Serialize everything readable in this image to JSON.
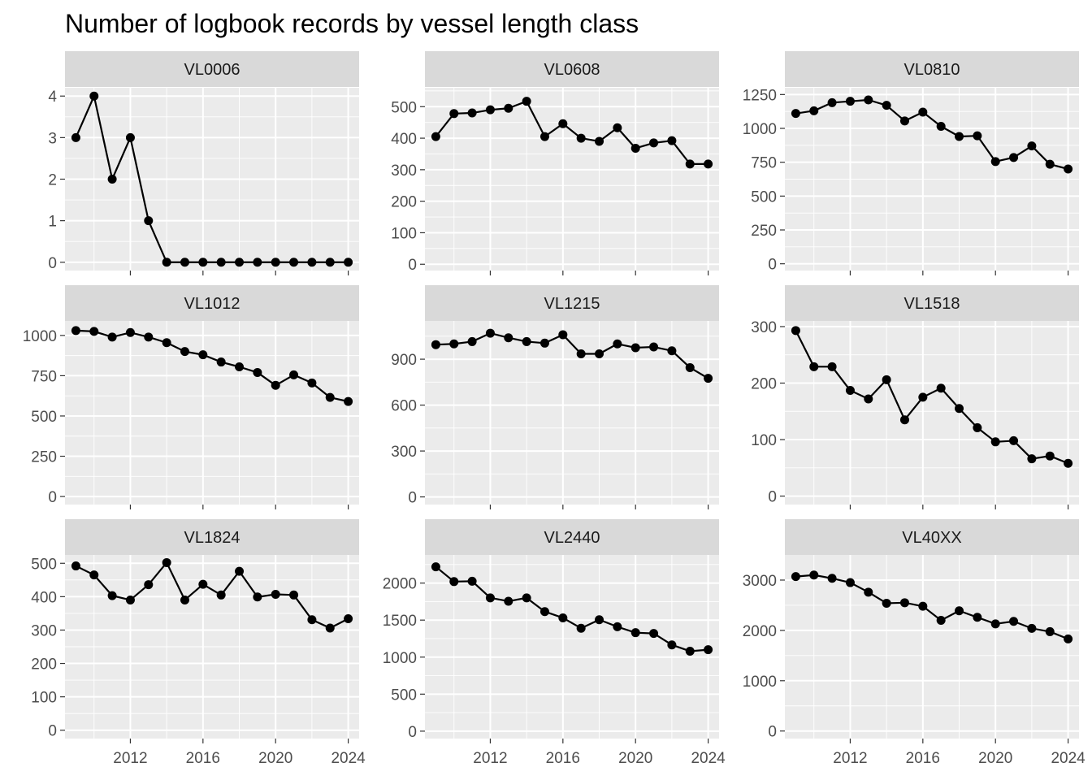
{
  "chart_data": {
    "type": "line",
    "title": "Number of logbook records by vessel length class",
    "x_ticks": [
      2012,
      2016,
      2020,
      2024
    ],
    "x_range": [
      2008.4,
      2024.6
    ],
    "grid": true,
    "legend": "none",
    "colors": {
      "panel_bg": "#ebebeb",
      "strip_bg": "#d9d9d9",
      "grid": "#ffffff",
      "line": "#000000",
      "point": "#000000",
      "tick_text": "#4d4d4d"
    },
    "facets": [
      {
        "name": "VL0006",
        "y_range": [
          -0.2,
          4.2
        ],
        "y_ticks": [
          0,
          1,
          2,
          3,
          4
        ],
        "y_tick_labels": [
          "0",
          "1",
          "2",
          "3",
          "4"
        ],
        "x": [
          2009,
          2010,
          2011,
          2012,
          2013,
          2014,
          2015,
          2016,
          2017,
          2018,
          2019,
          2020,
          2021,
          2022,
          2023,
          2024
        ],
        "y": [
          3,
          4,
          2,
          3,
          1,
          0,
          0,
          0,
          0,
          0,
          0,
          0,
          0,
          0,
          0,
          0
        ]
      },
      {
        "name": "VL0608",
        "y_range": [
          -20,
          560
        ],
        "y_ticks": [
          0,
          100,
          200,
          300,
          400,
          500
        ],
        "y_tick_labels": [
          "0",
          "100",
          "200",
          "300",
          "400",
          "500"
        ],
        "x": [
          2009,
          2010,
          2011,
          2012,
          2013,
          2014,
          2015,
          2016,
          2017,
          2018,
          2019,
          2020,
          2021,
          2022,
          2023,
          2024
        ],
        "y": [
          405,
          478,
          480,
          490,
          495,
          517,
          405,
          446,
          400,
          390,
          433,
          368,
          385,
          392,
          318,
          318
        ]
      },
      {
        "name": "VL0810",
        "y_range": [
          -50,
          1300
        ],
        "y_ticks": [
          0,
          250,
          500,
          750,
          1000,
          1250
        ],
        "y_tick_labels": [
          "0",
          "250",
          "500",
          "750",
          "1000",
          "1250"
        ],
        "x": [
          2009,
          2010,
          2011,
          2012,
          2013,
          2014,
          2015,
          2016,
          2017,
          2018,
          2019,
          2020,
          2021,
          2022,
          2023,
          2024
        ],
        "y": [
          1110,
          1130,
          1190,
          1200,
          1210,
          1170,
          1055,
          1120,
          1015,
          940,
          945,
          755,
          785,
          870,
          735,
          700
        ]
      },
      {
        "name": "VL1012",
        "y_range": [
          -50,
          1090
        ],
        "y_ticks": [
          0,
          250,
          500,
          750,
          1000
        ],
        "y_tick_labels": [
          "0",
          "250",
          "500",
          "750",
          "1000"
        ],
        "x": [
          2009,
          2010,
          2011,
          2012,
          2013,
          2014,
          2015,
          2016,
          2017,
          2018,
          2019,
          2020,
          2021,
          2022,
          2023,
          2024
        ],
        "y": [
          1030,
          1025,
          990,
          1018,
          990,
          955,
          900,
          880,
          835,
          805,
          770,
          690,
          755,
          705,
          615,
          590
        ]
      },
      {
        "name": "VL1215",
        "y_range": [
          -50,
          1150
        ],
        "y_ticks": [
          0,
          300,
          600,
          900
        ],
        "y_tick_labels": [
          "0",
          "300",
          "600",
          "900"
        ],
        "x": [
          2009,
          2010,
          2011,
          2012,
          2013,
          2014,
          2015,
          2016,
          2017,
          2018,
          2019,
          2020,
          2021,
          2022,
          2023,
          2024
        ],
        "y": [
          995,
          1000,
          1015,
          1070,
          1040,
          1015,
          1005,
          1060,
          935,
          935,
          1000,
          975,
          980,
          955,
          845,
          775
        ]
      },
      {
        "name": "VL1518",
        "y_range": [
          -15,
          310
        ],
        "y_ticks": [
          0,
          100,
          200,
          300
        ],
        "y_tick_labels": [
          "0",
          "100",
          "200",
          "300"
        ],
        "x": [
          2009,
          2010,
          2011,
          2012,
          2013,
          2014,
          2015,
          2016,
          2017,
          2018,
          2019,
          2020,
          2021,
          2022,
          2023,
          2024
        ],
        "y": [
          293,
          229,
          229,
          187,
          172,
          206,
          135,
          175,
          191,
          155,
          121,
          96,
          98,
          66,
          71,
          58
        ]
      },
      {
        "name": "VL1824",
        "y_range": [
          -25,
          525
        ],
        "y_ticks": [
          0,
          100,
          200,
          300,
          400,
          500
        ],
        "y_tick_labels": [
          "0",
          "100",
          "200",
          "300",
          "400",
          "500"
        ],
        "x": [
          2009,
          2010,
          2011,
          2012,
          2013,
          2014,
          2015,
          2016,
          2017,
          2018,
          2019,
          2020,
          2021,
          2022,
          2023,
          2024
        ],
        "y": [
          492,
          465,
          403,
          390,
          436,
          502,
          390,
          437,
          405,
          476,
          399,
          407,
          405,
          331,
          306,
          334
        ]
      },
      {
        "name": "VL2440",
        "y_range": [
          -100,
          2380
        ],
        "y_ticks": [
          0,
          500,
          1000,
          1500,
          2000
        ],
        "y_tick_labels": [
          "0",
          "500",
          "1000",
          "1500",
          "2000"
        ],
        "x": [
          2009,
          2010,
          2011,
          2012,
          2013,
          2014,
          2015,
          2016,
          2017,
          2018,
          2019,
          2020,
          2021,
          2022,
          2023,
          2024
        ],
        "y": [
          2220,
          2020,
          2025,
          1800,
          1755,
          1800,
          1615,
          1530,
          1390,
          1505,
          1410,
          1330,
          1320,
          1165,
          1080,
          1100
        ]
      },
      {
        "name": "VL40XX",
        "y_range": [
          -150,
          3500
        ],
        "y_ticks": [
          0,
          1000,
          2000,
          3000
        ],
        "y_tick_labels": [
          "0",
          "1000",
          "2000",
          "3000"
        ],
        "x": [
          2009,
          2010,
          2011,
          2012,
          2013,
          2014,
          2015,
          2016,
          2017,
          2018,
          2019,
          2020,
          2021,
          2022,
          2023,
          2024
        ],
        "y": [
          3070,
          3100,
          3035,
          2950,
          2760,
          2540,
          2550,
          2480,
          2200,
          2390,
          2260,
          2130,
          2180,
          2040,
          1975,
          1830
        ]
      }
    ]
  }
}
